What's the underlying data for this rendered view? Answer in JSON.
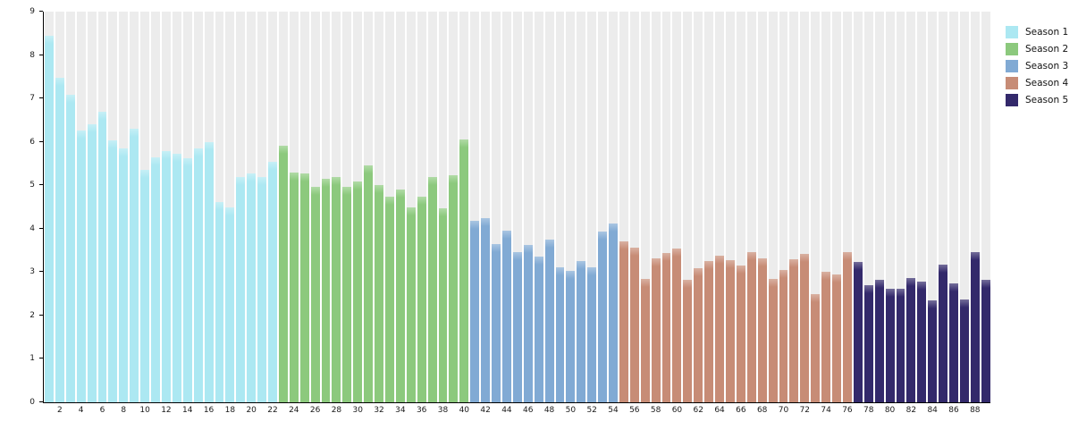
{
  "chart_data": {
    "type": "bar",
    "title": "",
    "xlabel": "",
    "ylabel": "",
    "ylim": [
      0,
      9
    ],
    "yticks": [
      0,
      1,
      2,
      3,
      4,
      5,
      6,
      7,
      8,
      9
    ],
    "xticks": [
      2,
      4,
      6,
      8,
      10,
      12,
      14,
      16,
      18,
      20,
      22,
      24,
      26,
      28,
      30,
      32,
      34,
      36,
      38,
      40,
      42,
      44,
      46,
      48,
      50,
      52,
      54,
      56,
      58,
      60,
      62,
      64,
      66,
      68,
      70,
      72,
      74,
      76,
      78,
      80,
      82,
      84,
      86,
      88
    ],
    "x_start": 1,
    "grid": false,
    "background_stripes": {
      "color": "#ececec",
      "full_height": true
    },
    "legend_position": "top-right",
    "series": [
      {
        "name": "Season 1",
        "color": "#ace8f2",
        "values": [
          8.44,
          7.47,
          7.08,
          6.27,
          6.41,
          6.69,
          6.04,
          5.85,
          6.31,
          5.35,
          5.65,
          5.79,
          5.72,
          5.62,
          5.84,
          6.0,
          4.61,
          4.48,
          5.18,
          5.27,
          5.18,
          5.54
        ]
      },
      {
        "name": "Season 2",
        "color": "#8cc97d",
        "values": [
          5.91,
          5.29,
          5.28,
          4.97,
          5.14,
          5.18,
          4.97,
          5.08,
          5.46,
          5.0,
          4.74,
          4.9,
          4.48,
          4.73,
          5.19,
          4.47,
          5.23,
          6.05
        ]
      },
      {
        "name": "Season 3",
        "color": "#81aad4",
        "values": [
          4.19,
          4.25,
          3.65,
          3.96,
          3.46,
          3.62,
          3.36,
          3.74,
          3.1,
          3.03,
          3.26,
          3.1,
          3.94,
          4.12
        ]
      },
      {
        "name": "Season 4",
        "color": "#c78c76",
        "values": [
          3.7,
          3.57,
          2.85,
          3.31,
          3.44,
          3.54,
          2.83,
          3.08,
          3.25,
          3.38,
          3.28,
          3.15,
          3.46,
          3.31,
          2.85,
          3.05,
          3.29,
          3.42,
          2.5,
          3.0,
          2.94,
          3.46
        ]
      },
      {
        "name": "Season 5",
        "color": "#33296b",
        "values": [
          3.24,
          2.7,
          2.83,
          2.61,
          2.61,
          2.87,
          2.78,
          2.35,
          3.17,
          2.73,
          2.37,
          3.47,
          2.83
        ]
      }
    ],
    "axis_color": "#000000",
    "tick_label_color": "#1a1a1a"
  }
}
